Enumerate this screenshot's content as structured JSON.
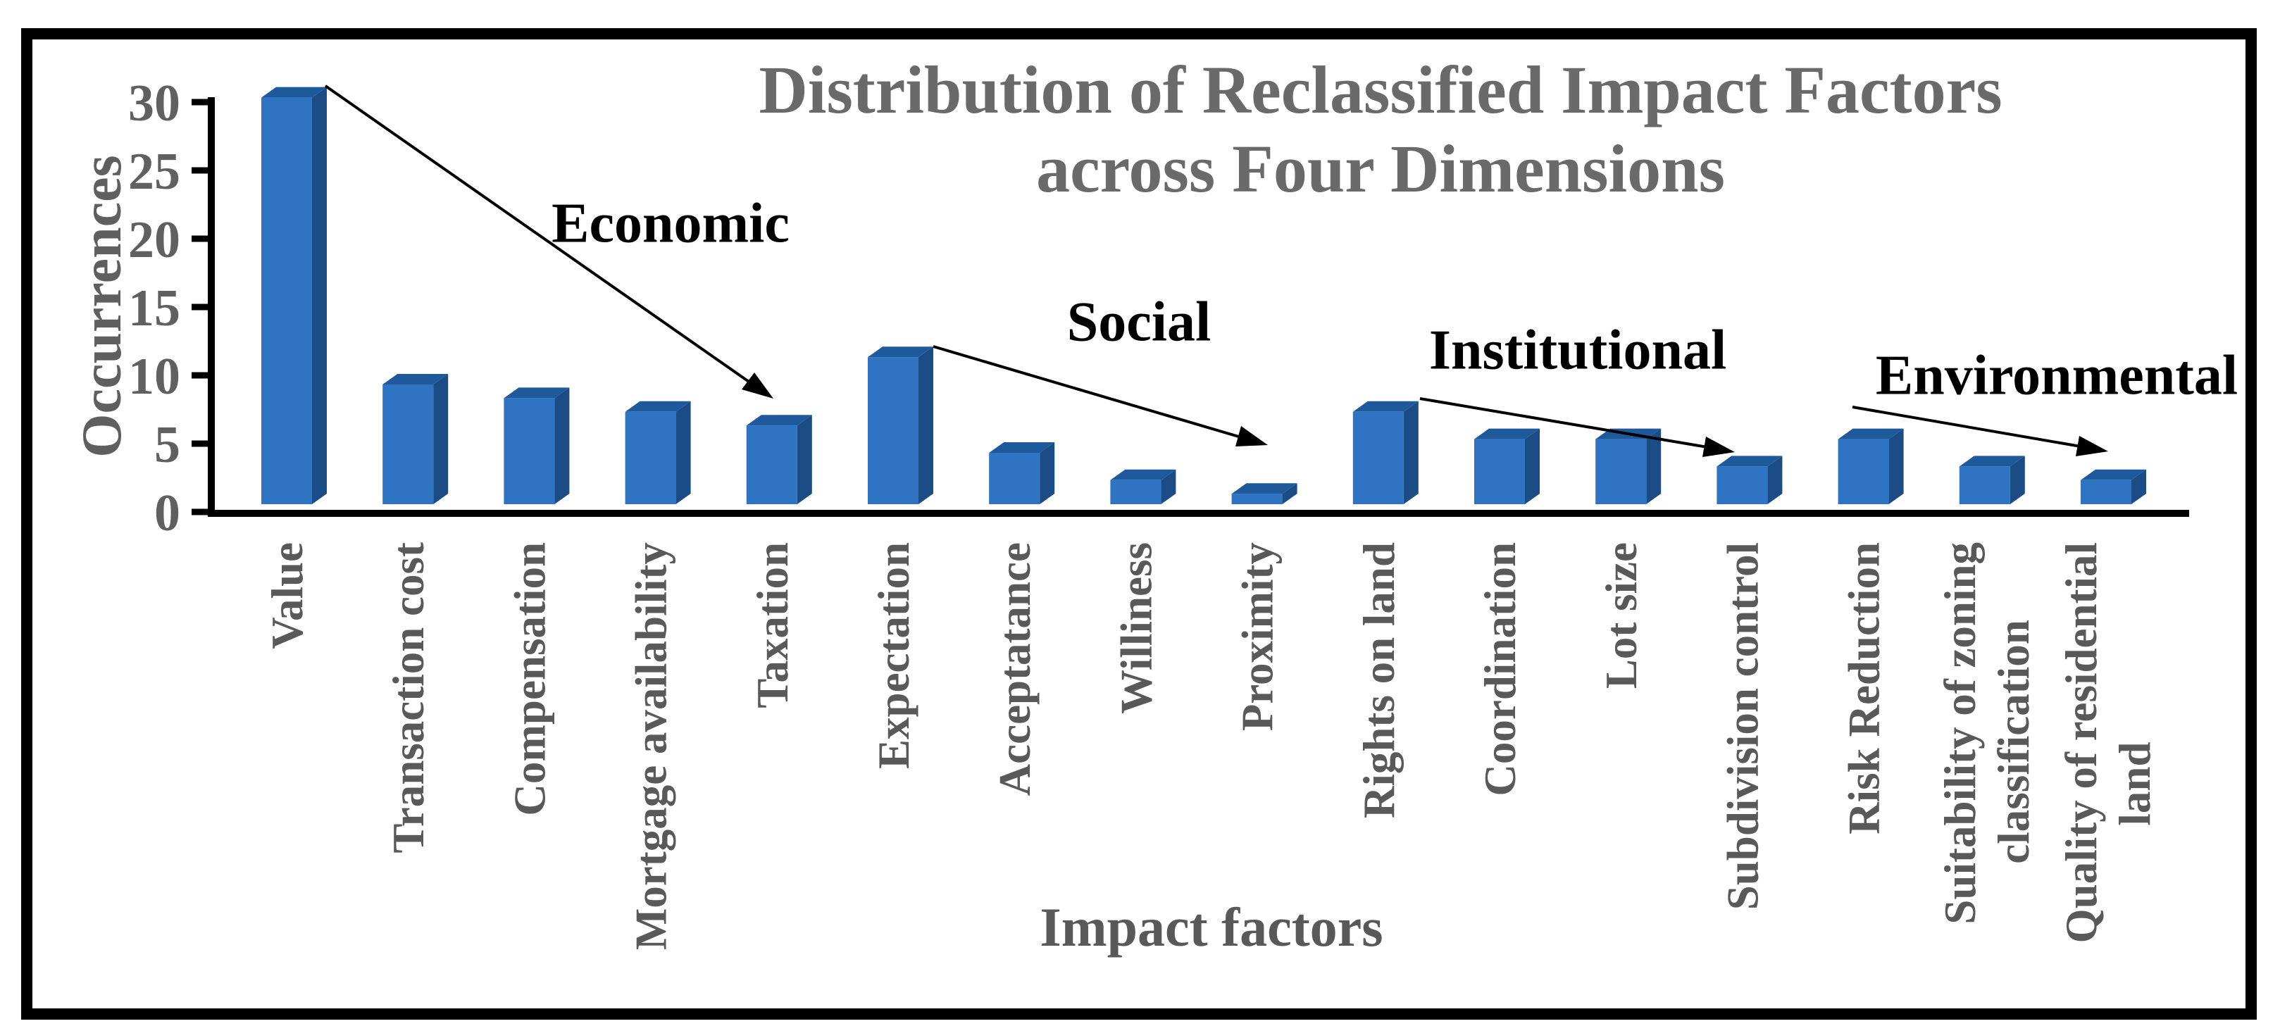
{
  "chart_data": {
    "type": "bar",
    "style": "3d-column",
    "title": "Distribution of Reclassified Impact Factors across Four Dimensions",
    "title_lines": [
      "Distribution of Reclassified Impact Factors",
      "across Four Dimensions"
    ],
    "xlabel": "Impact factors",
    "ylabel": "Occurrences",
    "categories": [
      "Value",
      "Transaction cost",
      "Compensation",
      "Mortgage availability",
      "Taxation",
      "Expectation",
      "Acceptatance",
      "Williness",
      "Proximity",
      "Rights on land",
      "Coordination",
      "Lot size",
      "Subdivision control",
      "Risk Reduction",
      "Suitability of zoning\nclassification",
      "Quality of residential\nland"
    ],
    "values": [
      31,
      10,
      9,
      8,
      7,
      12,
      5,
      3,
      2,
      8,
      6,
      6,
      4,
      6,
      4,
      3
    ],
    "ylim": [
      0,
      32
    ],
    "yticks": [
      0,
      5,
      10,
      15,
      20,
      25,
      30
    ],
    "grid": false,
    "legend": false,
    "bar_color": "#2E74C3",
    "bar_top_color": "#1E5A9B",
    "bar_side_color": "#1B4C85",
    "text_gray": "#5F5F5F",
    "title_gray": "#6A6A6A",
    "annotations": [
      {
        "label": "Economic",
        "members": [
          "Value",
          "Transaction cost",
          "Compensation",
          "Mortgage availability",
          "Taxation"
        ]
      },
      {
        "label": "Social",
        "members": [
          "Expectation",
          "Acceptatance",
          "Williness",
          "Proximity"
        ]
      },
      {
        "label": "Institutional",
        "members": [
          "Rights on land",
          "Coordination",
          "Lot size",
          "Subdivision control"
        ]
      },
      {
        "label": "Environmental",
        "members": [
          "Risk Reduction",
          "Suitability of zoning classification",
          "Quality of residential land"
        ]
      }
    ]
  }
}
